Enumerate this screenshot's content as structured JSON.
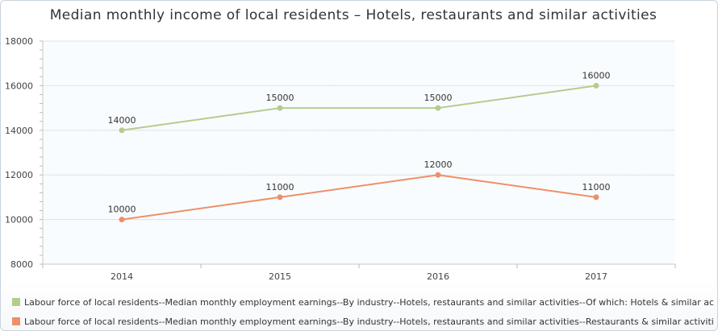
{
  "chart_data": {
    "type": "line",
    "title": "Median monthly income of local residents – Hotels, restaurants and similar activities",
    "categories": [
      "2014",
      "2015",
      "2016",
      "2017"
    ],
    "ylim": [
      8000,
      18000
    ],
    "yticks": [
      8000,
      10000,
      12000,
      14000,
      16000,
      18000
    ],
    "grid": true,
    "legend_position": "bottom",
    "series": [
      {
        "name": "Labour force of local residents--Median monthly employment earnings--By industry--Hotels, restaurants and similar activities--Of which: Hotels & similar activities",
        "values": [
          14000,
          15000,
          15000,
          16000
        ],
        "color": "#b5cc8e"
      },
      {
        "name": "Labour force of local residents--Median monthly employment earnings--By industry--Hotels, restaurants and similar activities--Restaurants & similar activities",
        "values": [
          10000,
          11000,
          12000,
          11000
        ],
        "color": "#ef8f6a"
      }
    ]
  }
}
